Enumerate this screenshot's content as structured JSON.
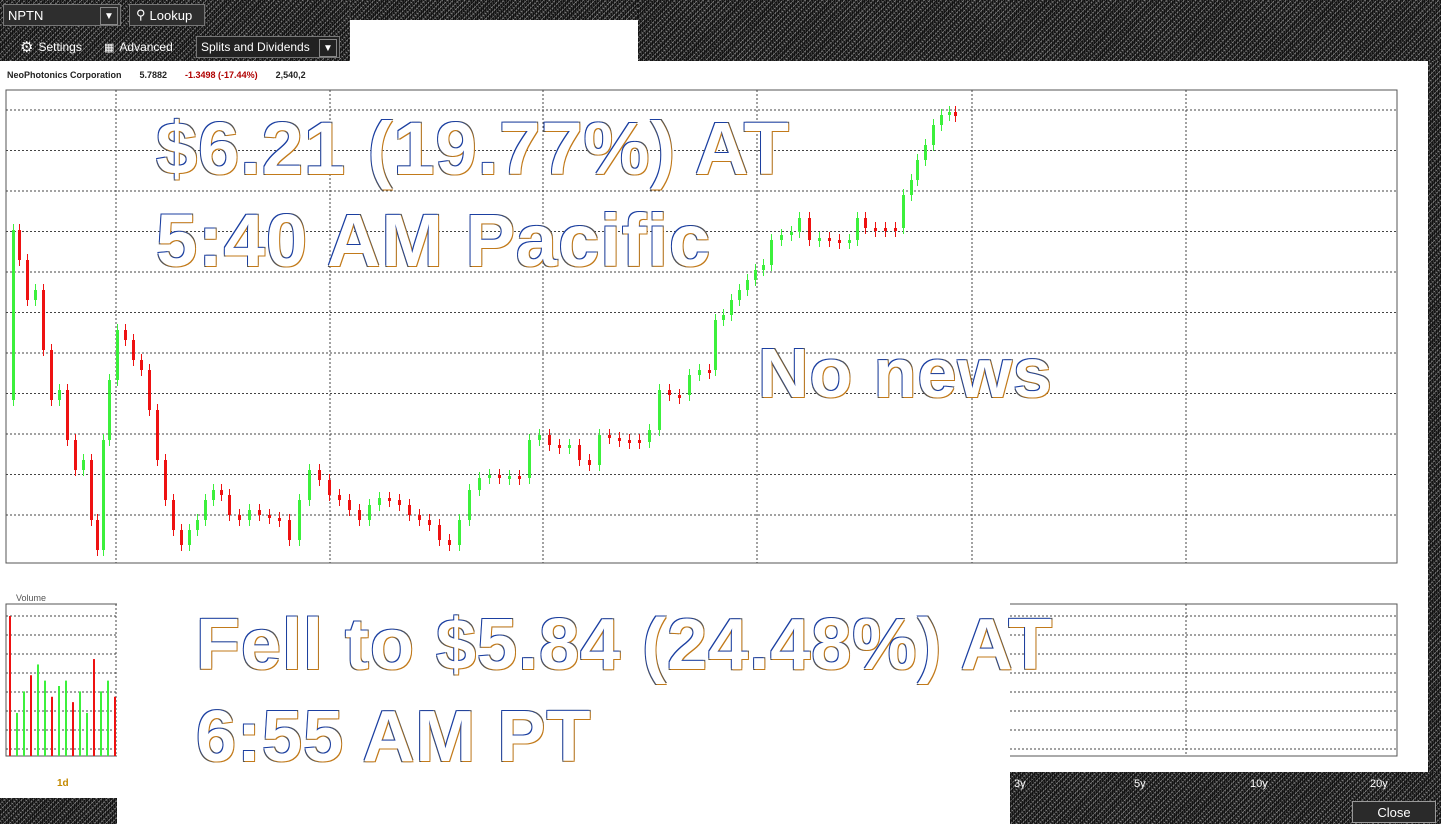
{
  "toolbar": {
    "symbol": "NPTN",
    "lookup_label": "Lookup",
    "settings_label": "Settings",
    "advanced_label": "Advanced",
    "mode_select": "Splits and Dividends"
  },
  "quote_bar": {
    "company": "NeoPhotonics Corporation",
    "price": "5.7882",
    "change": "-1.3498 (-17.44%)",
    "volume": "2,540,2"
  },
  "volume_panel": {
    "label": "Volume"
  },
  "timeframes": {
    "selected": "1d",
    "options": [
      "3y",
      "5y",
      "10y",
      "20y"
    ]
  },
  "close_label": "Close",
  "overlays": {
    "line1": "$6.21 (19.77%) AT",
    "line2": "5:40 AM Pacific",
    "no_news": "No news",
    "line3": "Fell to $5.84 (24.48%) AT",
    "line4": "6:55 AM PT"
  },
  "colors": {
    "up": "#3cf03c",
    "down": "#ee1111",
    "noise_bg": "#3a3a3a",
    "grid": "#444444",
    "change": "#b00000"
  }
}
